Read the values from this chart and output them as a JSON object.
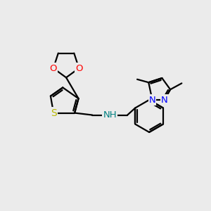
{
  "bg_color": "#ebebeb",
  "bond_color": "#000000",
  "bond_width": 1.6,
  "atom_colors": {
    "O": "#ff0000",
    "N_blue": "#0000ff",
    "S": "#b8b800",
    "NH": "#008080",
    "C": "#000000"
  },
  "xlim": [
    0,
    10
  ],
  "ylim": [
    0,
    10
  ]
}
